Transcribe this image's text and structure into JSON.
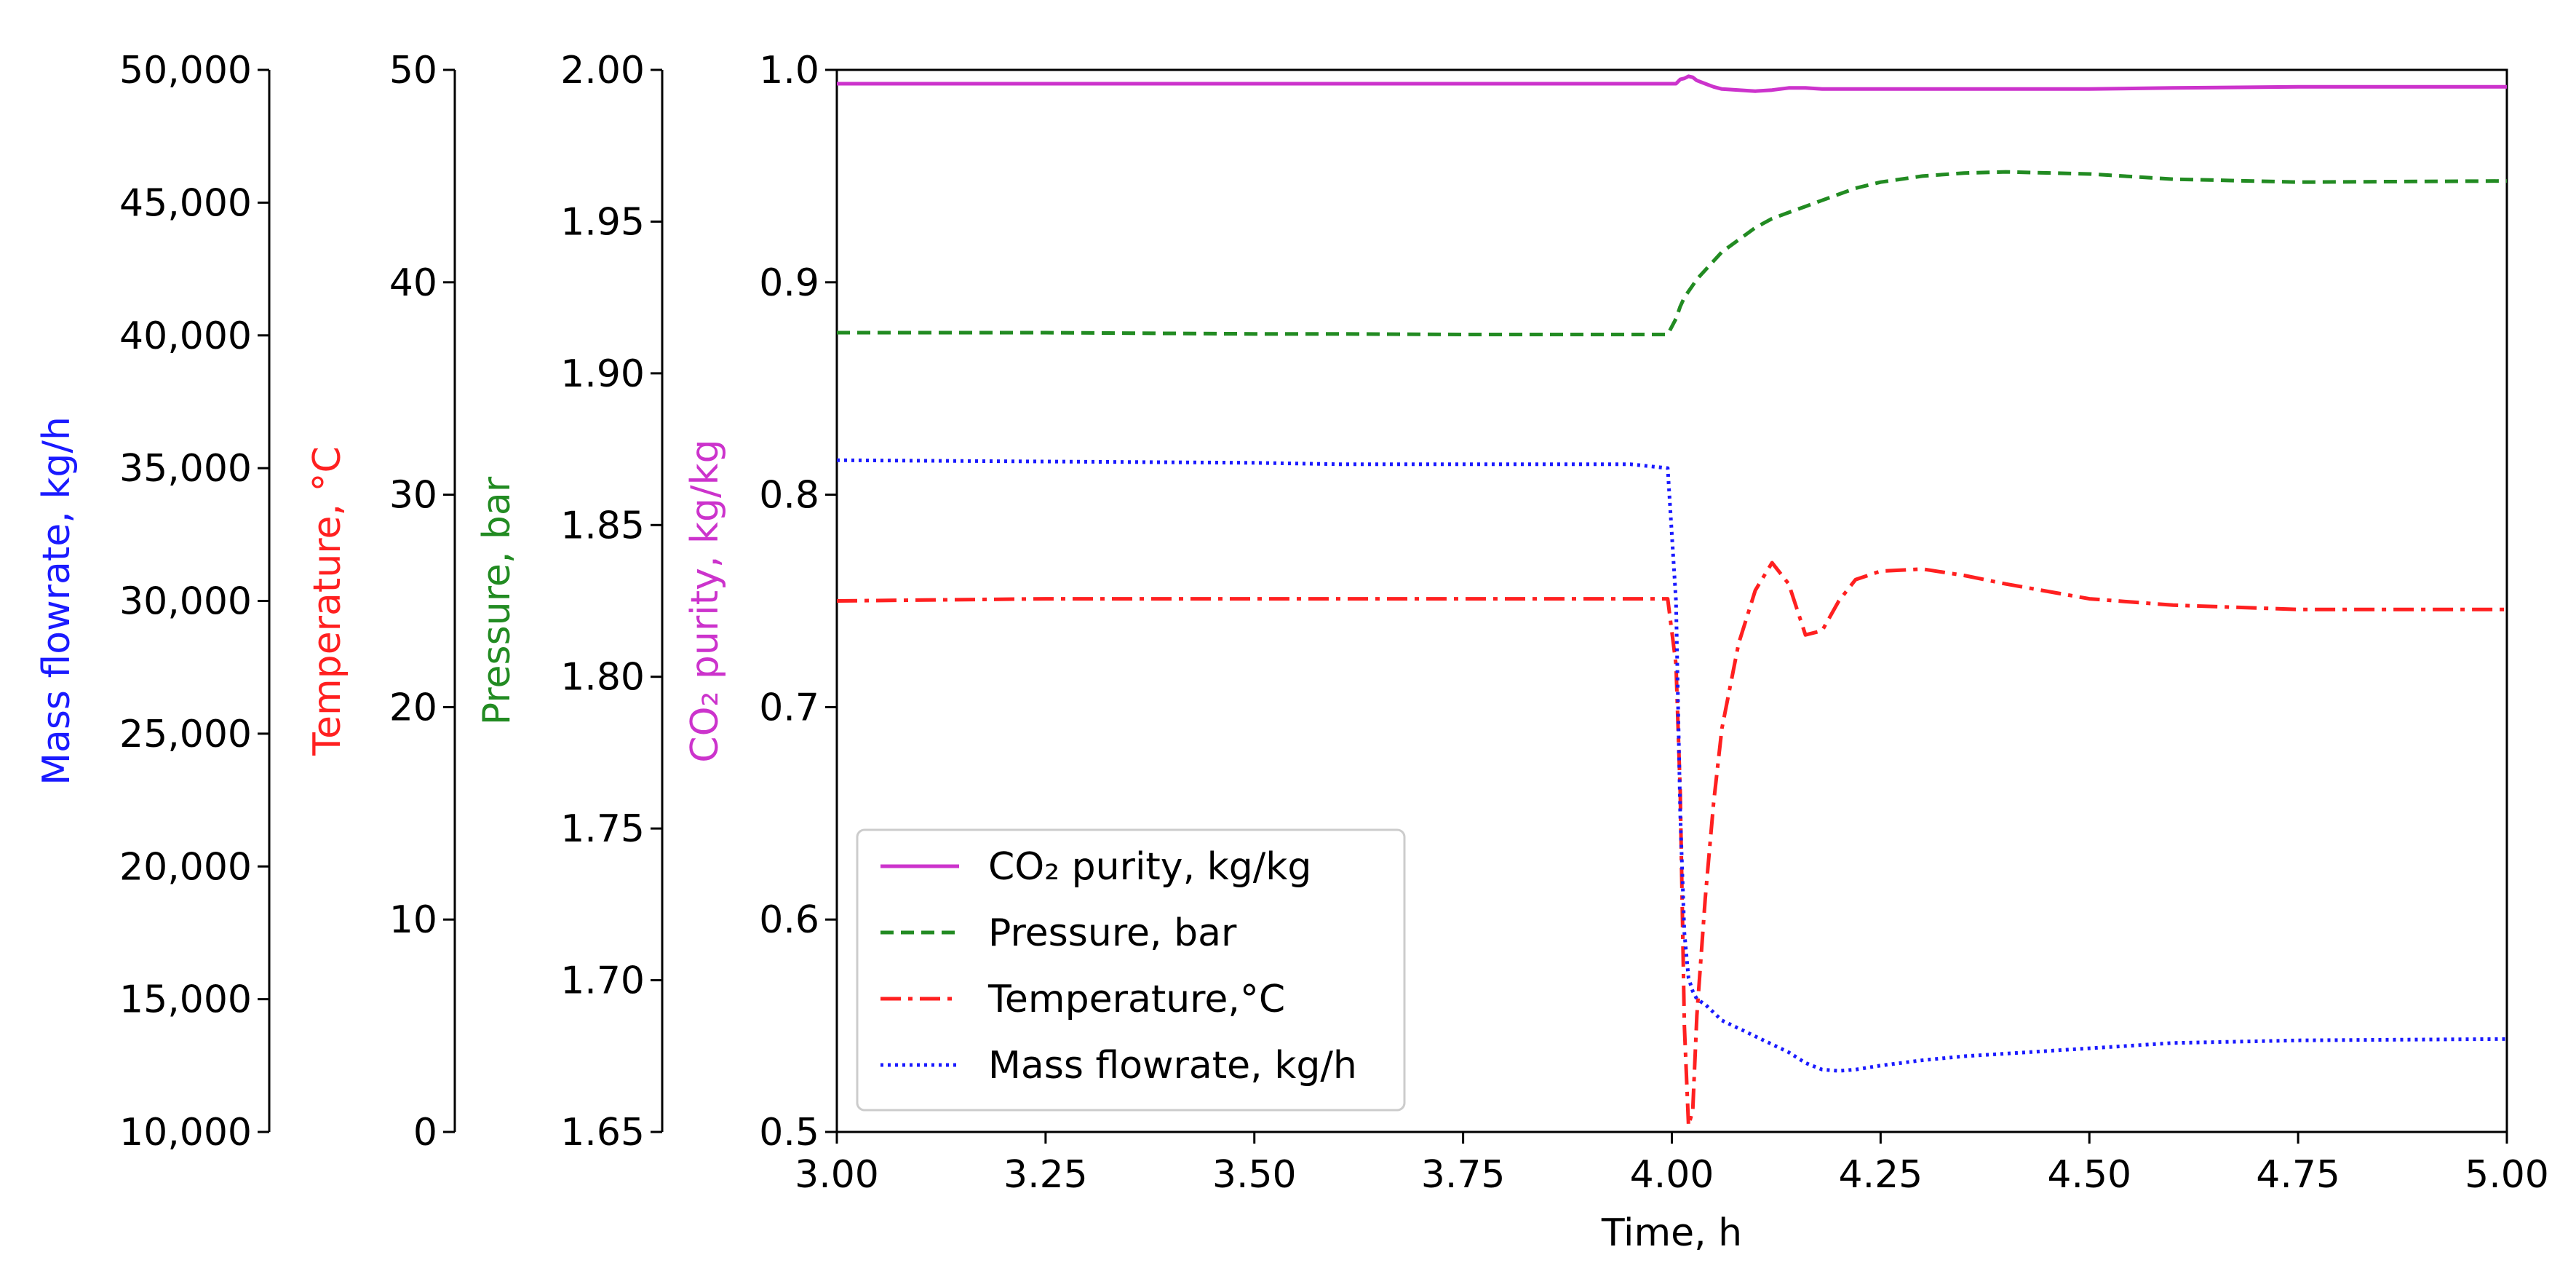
{
  "chart_data": {
    "type": "line",
    "x": [
      3.0,
      3.25,
      3.5,
      3.6,
      3.75,
      3.95,
      3.995,
      4.005,
      4.01,
      4.015,
      4.02,
      4.025,
      4.03,
      4.04,
      4.05,
      4.06,
      4.08,
      4.1,
      4.12,
      4.14,
      4.16,
      4.18,
      4.2,
      4.22,
      4.25,
      4.3,
      4.35,
      4.4,
      4.5,
      4.6,
      4.75,
      5.0
    ],
    "xlabel": "Time, h",
    "xlim": [
      3.0,
      5.0
    ],
    "xticks": [
      "3.00",
      "3.25",
      "3.50",
      "3.75",
      "4.00",
      "4.25",
      "4.50",
      "4.75",
      "5.00"
    ],
    "axes": [
      {
        "id": "purity",
        "label": "CO₂ purity, kg/kg",
        "color": "#cc33cc",
        "lim": [
          0.5,
          1.0
        ],
        "ticks": [
          "0.5",
          "0.6",
          "0.7",
          "0.8",
          "0.9",
          "1.0"
        ]
      },
      {
        "id": "pressure",
        "label": "Pressure, bar",
        "color": "#228b22",
        "lim": [
          1.65,
          2.0
        ],
        "ticks": [
          "1.65",
          "1.70",
          "1.75",
          "1.80",
          "1.85",
          "1.90",
          "1.95",
          "2.00"
        ]
      },
      {
        "id": "temperature",
        "label": "Temperature, °C",
        "color": "#ff2020",
        "lim": [
          0,
          50
        ],
        "ticks": [
          "0",
          "10",
          "20",
          "30",
          "40",
          "50"
        ]
      },
      {
        "id": "flow",
        "label": "Mass flowrate, kg/h",
        "color": "#1a1aff",
        "lim": [
          10000,
          50000
        ],
        "ticks": [
          "10,000",
          "15,000",
          "20,000",
          "25,000",
          "30,000",
          "35,000",
          "40,000",
          "45,000",
          "50,000"
        ]
      }
    ],
    "series": [
      {
        "name": "CO₂ purity, kg/kg",
        "axis": "purity",
        "color": "#cc33cc",
        "dash": "none",
        "values": [
          0.9935,
          0.9935,
          0.9935,
          0.9935,
          0.9935,
          0.9935,
          0.9935,
          0.9935,
          0.9955,
          0.996,
          0.997,
          0.9965,
          0.995,
          0.9935,
          0.992,
          0.991,
          0.9905,
          0.99,
          0.9905,
          0.9915,
          0.9915,
          0.991,
          0.991,
          0.991,
          0.991,
          0.991,
          0.991,
          0.991,
          0.991,
          0.9915,
          0.992,
          0.992
        ]
      },
      {
        "name": "Pressure, bar",
        "axis": "pressure",
        "color": "#228b22",
        "dash": "18,10",
        "values": [
          1.9134,
          1.9134,
          1.913,
          1.913,
          1.9128,
          1.9128,
          1.9128,
          1.918,
          1.922,
          1.925,
          1.927,
          1.929,
          1.931,
          1.934,
          1.937,
          1.94,
          1.944,
          1.948,
          1.951,
          1.953,
          1.955,
          1.957,
          1.959,
          1.961,
          1.963,
          1.965,
          1.966,
          1.9664,
          1.9657,
          1.964,
          1.963,
          1.9634
        ]
      },
      {
        "name": "Temperature,°C",
        "axis": "temperature",
        "color": "#ff2020",
        "dash": "28,10,6,10",
        "values": [
          25.0,
          25.1,
          25.1,
          25.1,
          25.1,
          25.1,
          25.1,
          22.0,
          16.0,
          5.0,
          0.3,
          1.0,
          5.5,
          11.0,
          15.5,
          19.0,
          23.0,
          25.5,
          26.8,
          25.8,
          23.4,
          23.6,
          25.0,
          26.0,
          26.4,
          26.5,
          26.2,
          25.8,
          25.1,
          24.8,
          24.6,
          24.6
        ]
      },
      {
        "name": "Mass flowrate, kg/h",
        "axis": "flow",
        "color": "#1a1aff",
        "dash": "4,6",
        "values": [
          35300,
          35250,
          35200,
          35150,
          35150,
          35150,
          35000,
          30000,
          22000,
          17500,
          15800,
          15300,
          15000,
          14800,
          14500,
          14200,
          13900,
          13600,
          13300,
          13000,
          12600,
          12350,
          12300,
          12350,
          12500,
          12700,
          12850,
          12950,
          13150,
          13350,
          13450,
          13500
        ]
      }
    ],
    "legend": {
      "position": "bottom-left"
    },
    "grid": false
  }
}
